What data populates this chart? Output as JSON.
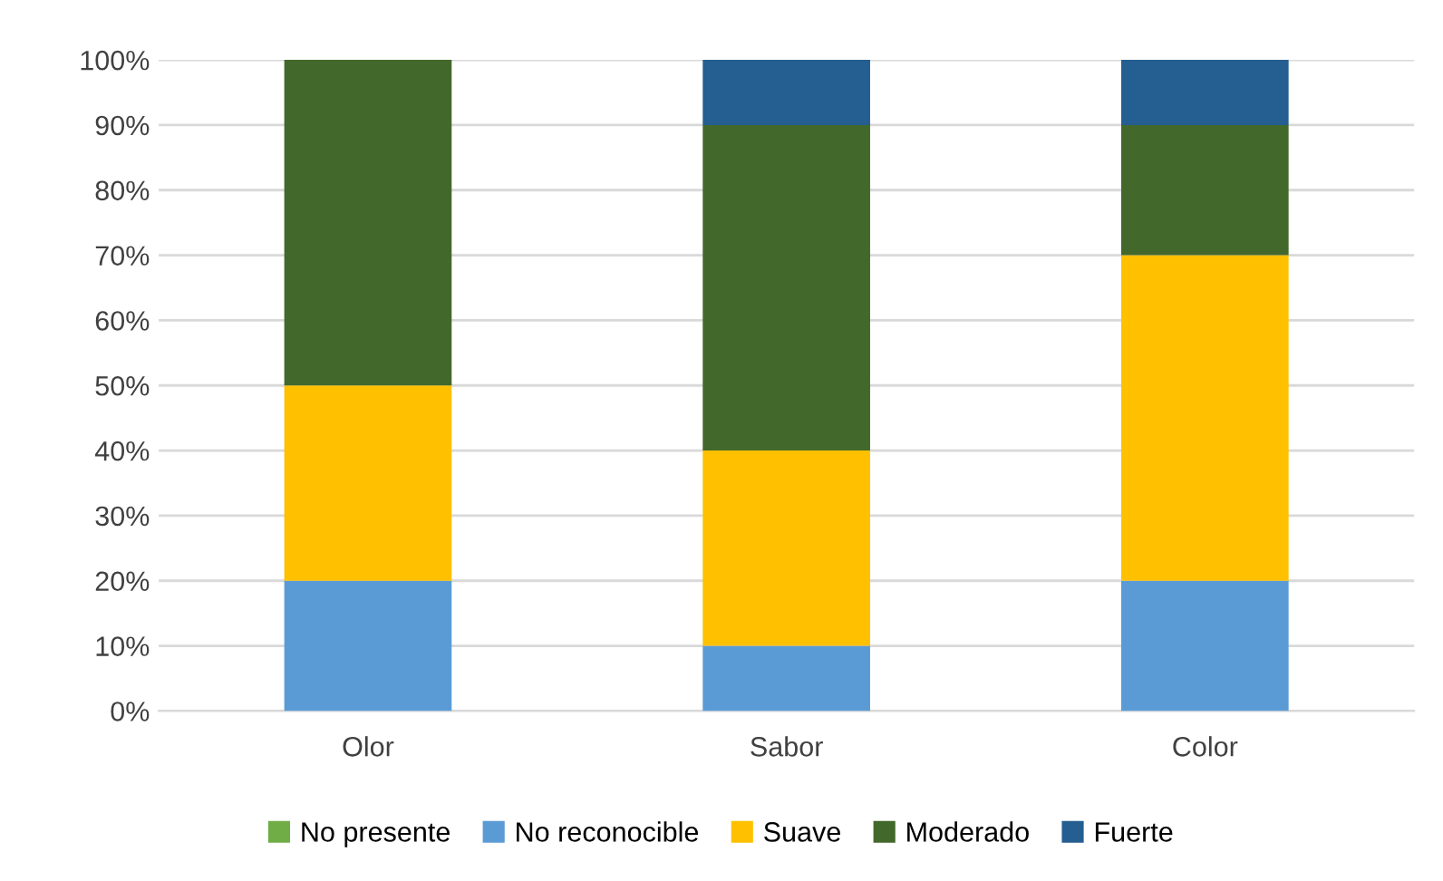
{
  "chart_data": {
    "type": "bar",
    "stacked": true,
    "categories": [
      "Olor",
      "Sabor",
      "Color"
    ],
    "series": [
      {
        "name": "No presente",
        "color": "#70ad47",
        "values": [
          0,
          0,
          0
        ]
      },
      {
        "name": "No reconocible",
        "color": "#5b9bd5",
        "values": [
          20,
          10,
          20
        ]
      },
      {
        "name": "Suave",
        "color": "#ffc000",
        "values": [
          30,
          30,
          50
        ]
      },
      {
        "name": "Moderado",
        "color": "#43682b",
        "values": [
          50,
          50,
          20
        ]
      },
      {
        "name": "Fuerte",
        "color": "#255e91",
        "values": [
          0,
          10,
          10
        ]
      }
    ],
    "ylim": [
      0,
      100
    ],
    "yticks": [
      {
        "value": 0,
        "label": "0%"
      },
      {
        "value": 10,
        "label": "10%"
      },
      {
        "value": 20,
        "label": "20%"
      },
      {
        "value": 30,
        "label": "30%"
      },
      {
        "value": 40,
        "label": "40%"
      },
      {
        "value": 50,
        "label": "50%"
      },
      {
        "value": 60,
        "label": "60%"
      },
      {
        "value": 70,
        "label": "70%"
      },
      {
        "value": 80,
        "label": "80%"
      },
      {
        "value": 90,
        "label": "90%"
      },
      {
        "value": 100,
        "label": "100%"
      }
    ],
    "grid": "y",
    "legend": "bottom"
  }
}
